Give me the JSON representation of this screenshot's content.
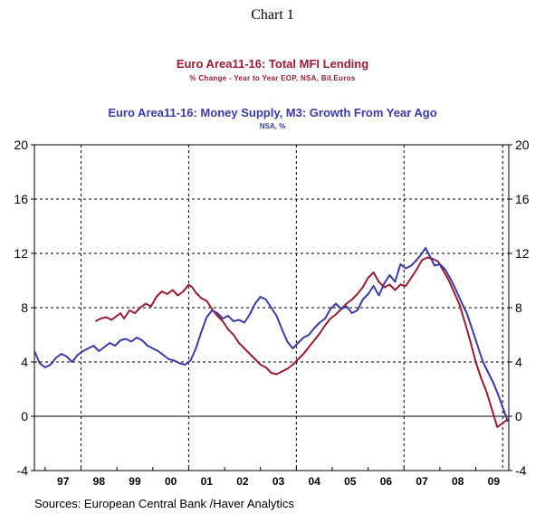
{
  "header": {
    "chart_label": "Chart 1",
    "series1_title": "Euro Area11-16: Total MFI Lending",
    "series1_subtitle": "% Change - Year to Year     EOP, NSA, Bil.Euros",
    "series2_title": "Euro Area11-16: Money Supply, M3: Growth From Year Ago",
    "series2_subtitle": "NSA, %"
  },
  "footer": {
    "source": "Sources:  European Central Bank /Haver Analytics"
  },
  "colors": {
    "lending": "#9b1b30",
    "m3": "#3a3aa8",
    "axis": "#000000"
  },
  "chart_data": {
    "type": "line",
    "title": "Chart 1",
    "xlabel": "",
    "ylabel": "",
    "xlim": [
      1996.7,
      2009.92
    ],
    "ylim": [
      -4,
      20
    ],
    "y_ticks": [
      -4,
      0,
      4,
      8,
      12,
      16,
      20
    ],
    "x_tick_labels": [
      "97",
      "98",
      "99",
      "00",
      "01",
      "02",
      "03",
      "04",
      "05",
      "06",
      "07",
      "08",
      "09"
    ],
    "x_tick_centers": [
      1997.5,
      1998.5,
      1999.5,
      2000.5,
      2001.5,
      2002.5,
      2003.5,
      2004.5,
      2005.5,
      2006.5,
      2007.5,
      2008.5,
      2009.5
    ],
    "vertical_gridlines_at": [
      1998.0,
      2001.0,
      2004.0,
      2007.0,
      2009.75
    ],
    "horizontal_gridlines_at": [
      4,
      8,
      12,
      16
    ],
    "series": [
      {
        "name": "Euro Area11-16: Total MFI Lending",
        "x": [
          1998.4,
          1998.55,
          1998.7,
          1998.85,
          1999.0,
          1999.1,
          1999.2,
          1999.35,
          1999.5,
          1999.65,
          1999.8,
          1999.95,
          2000.1,
          2000.25,
          2000.4,
          2000.55,
          2000.7,
          2000.85,
          2001.0,
          2001.1,
          2001.2,
          2001.35,
          2001.5,
          2001.65,
          2001.8,
          2001.95,
          2002.1,
          2002.25,
          2002.4,
          2002.55,
          2002.7,
          2002.85,
          2003.0,
          2003.15,
          2003.3,
          2003.45,
          2003.6,
          2003.75,
          2003.9,
          2004.05,
          2004.2,
          2004.35,
          2004.5,
          2004.65,
          2004.8,
          2004.95,
          2005.1,
          2005.25,
          2005.4,
          2005.55,
          2005.7,
          2005.85,
          2006.0,
          2006.15,
          2006.3,
          2006.45,
          2006.6,
          2006.75,
          2006.9,
          2007.05,
          2007.2,
          2007.35,
          2007.5,
          2007.65,
          2007.8,
          2007.95,
          2008.1,
          2008.25,
          2008.4,
          2008.55,
          2008.7,
          2008.85,
          2009.0,
          2009.15,
          2009.3,
          2009.45,
          2009.6,
          2009.75,
          2009.9
        ],
        "values": [
          7.0,
          7.2,
          7.3,
          7.1,
          7.4,
          7.6,
          7.2,
          7.8,
          7.6,
          8.0,
          8.3,
          8.1,
          8.8,
          9.2,
          9.0,
          9.3,
          8.9,
          9.2,
          9.7,
          9.5,
          9.1,
          8.7,
          8.5,
          7.9,
          7.4,
          7.0,
          6.4,
          6.0,
          5.4,
          5.0,
          4.6,
          4.2,
          3.8,
          3.6,
          3.2,
          3.1,
          3.3,
          3.5,
          3.8,
          4.2,
          4.6,
          5.1,
          5.6,
          6.1,
          6.7,
          7.2,
          7.5,
          7.9,
          8.3,
          8.6,
          9.0,
          9.5,
          10.2,
          10.6,
          9.9,
          9.5,
          9.7,
          9.3,
          9.7,
          9.6,
          10.2,
          10.8,
          11.5,
          11.7,
          11.6,
          11.4,
          10.7,
          10.0,
          9.1,
          8.2,
          6.9,
          5.5,
          4.0,
          2.8,
          1.8,
          0.5,
          -0.8,
          -0.5,
          -0.2
        ]
      },
      {
        "name": "Euro Area11-16: Money Supply, M3: Growth From Year Ago",
        "x": [
          1996.7,
          1996.85,
          1997.0,
          1997.15,
          1997.3,
          1997.45,
          1997.6,
          1997.75,
          1997.9,
          1998.05,
          1998.2,
          1998.35,
          1998.5,
          1998.65,
          1998.8,
          1998.95,
          1999.1,
          1999.25,
          1999.4,
          1999.55,
          1999.7,
          1999.85,
          2000.0,
          2000.15,
          2000.3,
          2000.45,
          2000.6,
          2000.75,
          2000.9,
          2001.05,
          2001.2,
          2001.35,
          2001.5,
          2001.65,
          2001.8,
          2001.95,
          2002.1,
          2002.25,
          2002.4,
          2002.55,
          2002.7,
          2002.85,
          2003.0,
          2003.15,
          2003.3,
          2003.45,
          2003.6,
          2003.75,
          2003.9,
          2004.05,
          2004.2,
          2004.35,
          2004.5,
          2004.65,
          2004.8,
          2004.95,
          2005.1,
          2005.25,
          2005.4,
          2005.55,
          2005.7,
          2005.85,
          2006.0,
          2006.15,
          2006.3,
          2006.45,
          2006.6,
          2006.75,
          2006.9,
          2007.05,
          2007.2,
          2007.35,
          2007.5,
          2007.6,
          2007.7,
          2007.85,
          2008.0,
          2008.15,
          2008.3,
          2008.45,
          2008.6,
          2008.75,
          2008.9,
          2009.05,
          2009.2,
          2009.35,
          2009.5,
          2009.65,
          2009.8,
          2009.9
        ],
        "values": [
          4.8,
          3.9,
          3.6,
          3.8,
          4.3,
          4.6,
          4.4,
          4.0,
          4.5,
          4.8,
          5.0,
          5.2,
          4.8,
          5.1,
          5.4,
          5.2,
          5.6,
          5.7,
          5.5,
          5.8,
          5.6,
          5.2,
          5.0,
          4.8,
          4.5,
          4.2,
          4.1,
          3.9,
          3.8,
          4.1,
          5.0,
          6.2,
          7.3,
          7.8,
          7.6,
          7.2,
          7.4,
          7.0,
          7.1,
          6.9,
          7.5,
          8.3,
          8.8,
          8.6,
          8.0,
          7.4,
          6.4,
          5.5,
          5.0,
          5.4,
          5.8,
          6.0,
          6.5,
          6.9,
          7.2,
          7.9,
          8.3,
          7.9,
          8.1,
          7.6,
          7.8,
          8.6,
          9.0,
          9.6,
          8.9,
          9.8,
          10.4,
          9.9,
          11.2,
          10.9,
          11.1,
          11.5,
          12.0,
          12.4,
          11.9,
          11.1,
          11.2,
          10.8,
          10.1,
          9.3,
          8.4,
          7.6,
          6.4,
          5.2,
          4.0,
          3.2,
          2.4,
          1.4,
          0.3,
          -0.4
        ]
      }
    ]
  }
}
